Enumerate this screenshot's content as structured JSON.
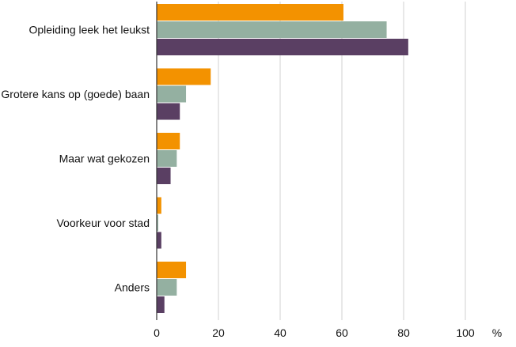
{
  "chart_data": {
    "type": "bar",
    "orientation": "horizontal",
    "categories": [
      "Opleiding leek het leukst",
      "Grotere kans op (goede) baan",
      "Maar wat gekozen",
      "Voorkeur voor stad",
      "Anders"
    ],
    "series": [
      {
        "color": "#f39200",
        "values": [
          60.5,
          17.5,
          7.5,
          1.5,
          9.5
        ]
      },
      {
        "color": "#94b0a1",
        "values": [
          74.5,
          9.5,
          6.5,
          0.5,
          6.5
        ]
      },
      {
        "color": "#5a3f63",
        "values": [
          81.5,
          7.5,
          4.5,
          1.5,
          2.5
        ]
      }
    ],
    "x_ticks": [
      0,
      20,
      40,
      60,
      80,
      100
    ],
    "x_unit": "%",
    "xlim": [
      0,
      110
    ],
    "title": "",
    "xlabel": "",
    "ylabel": "",
    "grid": "vertical",
    "legend": "none"
  }
}
